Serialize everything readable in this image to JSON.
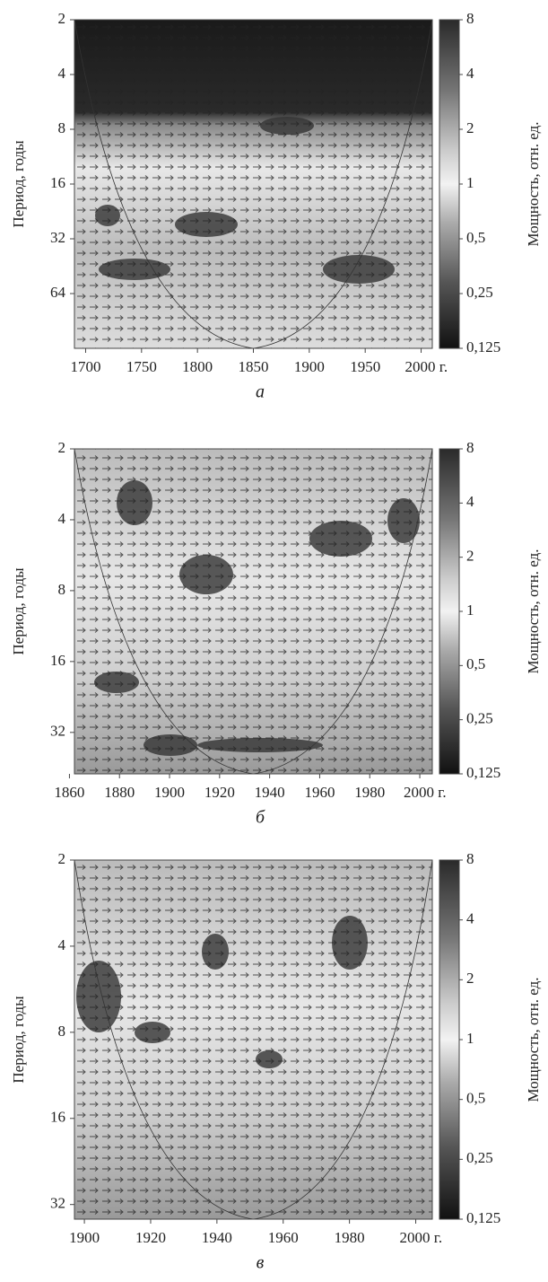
{
  "chart_data": [
    {
      "type": "heatmap",
      "panel_label": "а",
      "ylabel": "Период, годы",
      "colorbar_label": "Мощность, отн. ед.",
      "xlim": [
        1690,
        2010
      ],
      "xticks": [
        1700,
        1750,
        1800,
        1850,
        1900,
        1950,
        {
          "value": 2000,
          "label": "2000 г."
        }
      ],
      "ylim": [
        2,
        128
      ],
      "yticks": [
        2,
        4,
        8,
        16,
        32,
        64
      ],
      "ylog": true,
      "clim": [
        0.125,
        8
      ],
      "cticks": [
        8,
        4,
        2,
        1,
        {
          "value": 0.5,
          "label": "0,5"
        },
        {
          "value": 0.25,
          "label": "0,25"
        },
        {
          "value": 0.125,
          "label": "0,125"
        }
      ]
    },
    {
      "type": "heatmap",
      "panel_label": "б",
      "ylabel": "Период, годы",
      "colorbar_label": "Мощность, отн. ед.",
      "xlim": [
        1862,
        2005
      ],
      "xticks": [
        1860,
        1880,
        1900,
        1920,
        1940,
        1960,
        1980,
        {
          "value": 2000,
          "label": "2000 г."
        }
      ],
      "ylim": [
        2,
        48
      ],
      "yticks": [
        2,
        4,
        8,
        16,
        32
      ],
      "ylog": true,
      "clim": [
        0.125,
        8
      ],
      "cticks": [
        8,
        4,
        2,
        1,
        {
          "value": 0.5,
          "label": "0,5"
        },
        {
          "value": 0.25,
          "label": "0,25"
        },
        {
          "value": 0.125,
          "label": "0,125"
        }
      ]
    },
    {
      "type": "heatmap",
      "panel_label": "в",
      "ylabel": "Период, годы",
      "colorbar_label": "Мощность, отн. ед.",
      "xlim": [
        1897,
        2005
      ],
      "xticks": [
        1900,
        1920,
        1940,
        1960,
        1980,
        {
          "value": 2000,
          "label": "2000 г."
        }
      ],
      "ylim": [
        2,
        36
      ],
      "yticks": [
        2,
        4,
        8,
        16,
        32
      ],
      "ylog": true,
      "clim": [
        0.125,
        8
      ],
      "cticks": [
        8,
        4,
        2,
        1,
        {
          "value": 0.5,
          "label": "0,5"
        },
        {
          "value": 0.25,
          "label": "0,25"
        },
        {
          "value": 0.125,
          "label": "0,125"
        }
      ]
    }
  ]
}
